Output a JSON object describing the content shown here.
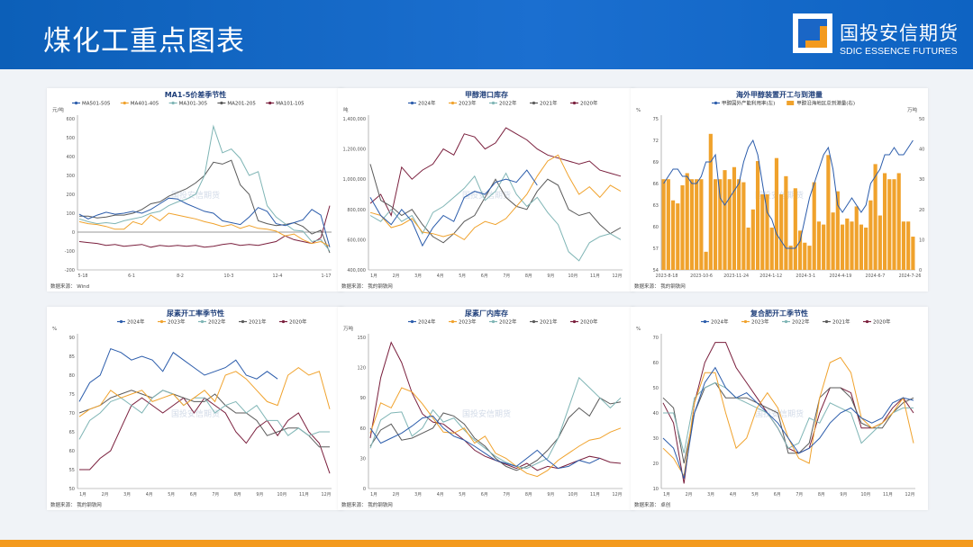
{
  "header": {
    "title": "煤化工重点图表"
  },
  "logo": {
    "cn": "国投安信期货",
    "en": "SDIC ESSENCE FUTURES",
    "accent": "#f39a1e"
  },
  "watermark": "国投安信期货",
  "charts": [
    {
      "panel_pos": [
        52,
        98
      ],
      "title": "MA1-5价差季节性",
      "unit": "元/吨",
      "source": "数据来源：   Wind",
      "type": "line",
      "ylim": [
        -200,
        600
      ],
      "yticks": [
        "600",
        "500",
        "400",
        "300",
        "200",
        "100",
        "0",
        "-100",
        "-200"
      ],
      "xticks": [
        "5-18",
        "6-1",
        "8-2",
        "10-3",
        "12-4",
        "1-17"
      ],
      "legend": [
        "MA501-505",
        "MA401-405",
        "MA301-305",
        "MA201-205",
        "MA101-105"
      ],
      "colors": [
        "#2b5cab",
        "#f0a22c",
        "#7fb5b5",
        "#5a5a5a",
        "#7a1f3d"
      ],
      "series": [
        [
          95,
          70,
          90,
          105,
          95,
          100,
          110,
          100,
          120,
          150,
          180,
          175,
          150,
          130,
          110,
          100,
          60,
          50,
          40,
          80,
          130,
          110,
          45,
          35,
          50,
          65,
          120,
          90,
          -80
        ],
        [
          55,
          45,
          40,
          30,
          15,
          15,
          55,
          40,
          90,
          60,
          100,
          90,
          80,
          70,
          55,
          45,
          30,
          40,
          20,
          35,
          20,
          15,
          5,
          -20,
          -10,
          -40,
          -60,
          -50,
          -75
        ],
        [
          70,
          55,
          45,
          50,
          45,
          60,
          70,
          80,
          100,
          110,
          140,
          160,
          175,
          200,
          300,
          560,
          420,
          440,
          390,
          300,
          320,
          140,
          80,
          45,
          10,
          5,
          -50,
          -40,
          -100
        ],
        [
          85,
          85,
          75,
          80,
          90,
          90,
          100,
          120,
          150,
          160,
          190,
          210,
          230,
          260,
          300,
          370,
          360,
          380,
          250,
          200,
          60,
          45,
          35,
          40,
          50,
          30,
          -10,
          10,
          -110
        ],
        [
          -50,
          -55,
          -60,
          -70,
          -65,
          -75,
          -70,
          -65,
          -80,
          -70,
          -75,
          -70,
          -75,
          -70,
          -80,
          -75,
          -65,
          -60,
          -70,
          -65,
          -70,
          -60,
          -50,
          -20,
          -40,
          -50,
          -60,
          -30,
          140
        ]
      ]
    },
    {
      "panel_pos": [
        375,
        98
      ],
      "title": "甲醇港口库存",
      "unit": "吨",
      "source": "数据来源：   我的钢铁网",
      "type": "line",
      "ylim": [
        400000,
        1400000
      ],
      "yticks": [
        "1,400,000",
        "1,200,000",
        "1,000,000",
        "800,000",
        "600,000",
        "400,000"
      ],
      "xticks": [
        "1月",
        "2月",
        "3月",
        "4月",
        "5月",
        "6月",
        "7月",
        "8月",
        "9月",
        "10月",
        "11月",
        "12月"
      ],
      "legend": [
        "2024年",
        "2023年",
        "2022年",
        "2021年",
        "2020年"
      ],
      "colors": [
        "#2b5cab",
        "#f0a22c",
        "#7fb5b5",
        "#5a5a5a",
        "#7a1f3d"
      ],
      "series": [
        [
          880000,
          760000,
          700000,
          800000,
          720000,
          560000,
          680000,
          760000,
          720000,
          880000,
          920000,
          900000,
          980000,
          1000000,
          980000,
          1060000,
          960000,
          null,
          null,
          null,
          null,
          null,
          null,
          null,
          null
        ],
        [
          780000,
          760000,
          680000,
          700000,
          740000,
          650000,
          640000,
          620000,
          640000,
          600000,
          680000,
          720000,
          700000,
          740000,
          820000,
          900000,
          1020000,
          1120000,
          1160000,
          1020000,
          900000,
          950000,
          880000,
          960000,
          920000
        ],
        [
          760000,
          720000,
          800000,
          720000,
          760000,
          640000,
          780000,
          820000,
          880000,
          940000,
          1020000,
          860000,
          920000,
          1040000,
          900000,
          820000,
          880000,
          780000,
          700000,
          520000,
          460000,
          580000,
          620000,
          640000,
          600000
        ],
        [
          1100000,
          860000,
          820000,
          760000,
          800000,
          700000,
          620000,
          580000,
          640000,
          720000,
          760000,
          880000,
          1000000,
          880000,
          820000,
          800000,
          920000,
          1000000,
          960000,
          800000,
          760000,
          780000,
          700000,
          640000,
          680000
        ],
        [
          840000,
          900000,
          760000,
          1080000,
          1000000,
          1060000,
          1100000,
          1200000,
          1160000,
          1300000,
          1280000,
          1200000,
          1240000,
          1340000,
          1300000,
          1260000,
          1200000,
          1160000,
          1140000,
          1120000,
          1100000,
          1120000,
          1060000,
          1040000,
          1020000
        ]
      ]
    },
    {
      "panel_pos": [
        700,
        98
      ],
      "title": "海外甲醇装置开工与到港量",
      "unit": "%",
      "unit_right": "万吨",
      "source": "数据来源：   我的钢铁网",
      "type": "bar-line",
      "ylim": [
        54,
        75
      ],
      "yticks": [
        "75",
        "72",
        "69",
        "66",
        "63",
        "60",
        "57",
        "54"
      ],
      "y2ticks": [
        "50",
        "40",
        "30",
        "20",
        "10",
        "0"
      ],
      "xticks": [
        "2023-8-18",
        "2023-10-6",
        "2023-11-24",
        "2024-1-12",
        "2024-3-1",
        "2024-4-19",
        "2024-6-7",
        "2024-7-26"
      ],
      "legend": [
        "甲醇国外产能利用率(左)",
        "甲醇沿海地区总到港量(右)"
      ],
      "colors": [
        "#2b5cab",
        "#f0a22c"
      ],
      "bars": [
        30,
        30,
        23,
        22,
        28,
        32,
        30,
        30,
        30,
        6,
        45,
        30,
        30,
        33,
        30,
        34,
        30,
        29,
        14,
        20,
        36,
        25,
        25,
        14,
        37,
        25,
        31,
        8,
        27,
        13,
        9,
        8,
        29,
        16,
        15,
        38,
        19,
        26,
        15,
        17,
        16,
        21,
        15,
        14,
        23,
        35,
        18,
        32,
        30,
        30,
        32,
        16,
        16,
        11
      ],
      "line": [
        66,
        67,
        68,
        68,
        67,
        67,
        66,
        66,
        67,
        69,
        69,
        70,
        64,
        63,
        64,
        65,
        66,
        69,
        71,
        72,
        70,
        66,
        62,
        61,
        59,
        58,
        57,
        57,
        57,
        58,
        61,
        64,
        66,
        68,
        70,
        71,
        68,
        63,
        62,
        63,
        64,
        63,
        62,
        63,
        66,
        67,
        68,
        70,
        70,
        71,
        70,
        70,
        71,
        72
      ]
    },
    {
      "panel_pos": [
        52,
        341
      ],
      "title": "尿素开工率季节性",
      "unit": "%",
      "source": "数据来源：   我的钢铁网",
      "type": "line",
      "ylim": [
        50,
        90
      ],
      "yticks": [
        "90",
        "85",
        "80",
        "75",
        "70",
        "65",
        "60",
        "55",
        "50"
      ],
      "xticks": [
        "1月",
        "2月",
        "3月",
        "4月",
        "5月",
        "6月",
        "7月",
        "8月",
        "9月",
        "10月",
        "11月",
        "12月"
      ],
      "legend": [
        "2024年",
        "2023年",
        "2022年",
        "2021年",
        "2020年"
      ],
      "colors": [
        "#2b5cab",
        "#f0a22c",
        "#7fb5b5",
        "#5a5a5a",
        "#7a1f3d"
      ],
      "series": [
        [
          73,
          78,
          80,
          87,
          86,
          84,
          85,
          84,
          81,
          86,
          84,
          82,
          80,
          81,
          82,
          84,
          80,
          79,
          81,
          79,
          null,
          null,
          null,
          null,
          null
        ],
        [
          69,
          71,
          72,
          76,
          74,
          75,
          76,
          73,
          74,
          75,
          72,
          74,
          76,
          73,
          80,
          81,
          79,
          76,
          73,
          72,
          80,
          82,
          80,
          81,
          71
        ],
        [
          63,
          68,
          70,
          73,
          74,
          72,
          70,
          74,
          76,
          75,
          72,
          74,
          74,
          70,
          72,
          73,
          70,
          72,
          68,
          68,
          64,
          66,
          64,
          65,
          65
        ],
        [
          70,
          71,
          72,
          74,
          75,
          76,
          75,
          74,
          76,
          75,
          74,
          73,
          73,
          75,
          72,
          70,
          70,
          68,
          64,
          65,
          66,
          66,
          64,
          61,
          61
        ],
        [
          55,
          55,
          58,
          60,
          66,
          72,
          74,
          72,
          70,
          72,
          74,
          70,
          74,
          72,
          70,
          65,
          62,
          66,
          68,
          64,
          68,
          70,
          65,
          62,
          54
        ]
      ]
    },
    {
      "panel_pos": [
        375,
        341
      ],
      "title": "尿素厂内库存",
      "unit": "万吨",
      "source": "数据来源：   我的钢铁网",
      "type": "line",
      "ylim": [
        0,
        150
      ],
      "yticks": [
        "150",
        "120",
        "90",
        "60",
        "30",
        "0"
      ],
      "xticks": [
        "1月",
        "2月",
        "3月",
        "4月",
        "5月",
        "6月",
        "7月",
        "8月",
        "9月",
        "10月",
        "11月",
        "12月"
      ],
      "legend": [
        "2024年",
        "2023年",
        "2022年",
        "2021年",
        "2020年"
      ],
      "colors": [
        "#2b5cab",
        "#f0a22c",
        "#7fb5b5",
        "#5a5a5a",
        "#7a1f3d"
      ],
      "series": [
        [
          60,
          45,
          50,
          55,
          62,
          70,
          72,
          60,
          52,
          48,
          42,
          35,
          28,
          25,
          22,
          30,
          38,
          28,
          20,
          22,
          28,
          25,
          30,
          null,
          null
        ],
        [
          55,
          85,
          80,
          100,
          96,
          84,
          70,
          56,
          55,
          60,
          45,
          52,
          35,
          30,
          22,
          15,
          12,
          18,
          28,
          35,
          42,
          48,
          50,
          56,
          60
        ],
        [
          40,
          68,
          75,
          76,
          52,
          60,
          78,
          66,
          70,
          58,
          48,
          40,
          32,
          26,
          22,
          20,
          25,
          30,
          50,
          80,
          110,
          100,
          90,
          80,
          90
        ],
        [
          42,
          58,
          64,
          48,
          50,
          55,
          60,
          75,
          72,
          64,
          50,
          42,
          30,
          22,
          18,
          22,
          28,
          38,
          50,
          70,
          80,
          72,
          90,
          84,
          86
        ],
        [
          50,
          110,
          145,
          125,
          95,
          74,
          66,
          64,
          56,
          48,
          38,
          32,
          28,
          24,
          20,
          25,
          18,
          22,
          20,
          24,
          28,
          32,
          30,
          26,
          25
        ]
      ]
    },
    {
      "panel_pos": [
        700,
        341
      ],
      "title": "复合肥开工季节性",
      "unit": "%",
      "source": "数据来源：   卓创",
      "type": "line",
      "ylim": [
        10,
        70
      ],
      "yticks": [
        "70",
        "60",
        "50",
        "40",
        "30",
        "20",
        "10"
      ],
      "xticks": [
        "1月",
        "2月",
        "3月",
        "4月",
        "5月",
        "6月",
        "7月",
        "8月",
        "9月",
        "10月",
        "11月",
        "12月"
      ],
      "legend": [
        "2024年",
        "2023年",
        "2022年",
        "2021年",
        "2020年"
      ],
      "colors": [
        "#2b5cab",
        "#f0a22c",
        "#7fb5b5",
        "#5a5a5a",
        "#7a1f3d"
      ],
      "series": [
        [
          30,
          26,
          14,
          40,
          52,
          58,
          50,
          46,
          48,
          44,
          40,
          36,
          30,
          24,
          26,
          30,
          36,
          40,
          42,
          38,
          36,
          38,
          44,
          46,
          45
        ],
        [
          26,
          22,
          15,
          44,
          56,
          56,
          40,
          26,
          30,
          42,
          48,
          42,
          30,
          22,
          20,
          46,
          60,
          62,
          56,
          38,
          34,
          36,
          40,
          46,
          28
        ],
        [
          40,
          40,
          24,
          46,
          50,
          52,
          50,
          46,
          44,
          42,
          40,
          34,
          26,
          28,
          38,
          36,
          44,
          42,
          40,
          28,
          32,
          36,
          40,
          42,
          42
        ],
        [
          46,
          42,
          20,
          40,
          50,
          52,
          46,
          46,
          46,
          44,
          42,
          40,
          24,
          24,
          28,
          46,
          50,
          50,
          46,
          36,
          34,
          34,
          40,
          44,
          46
        ],
        [
          44,
          36,
          12,
          44,
          60,
          68,
          68,
          58,
          52,
          46,
          40,
          34,
          26,
          24,
          26,
          40,
          50,
          50,
          48,
          34,
          34,
          36,
          42,
          46,
          40
        ]
      ]
    }
  ]
}
